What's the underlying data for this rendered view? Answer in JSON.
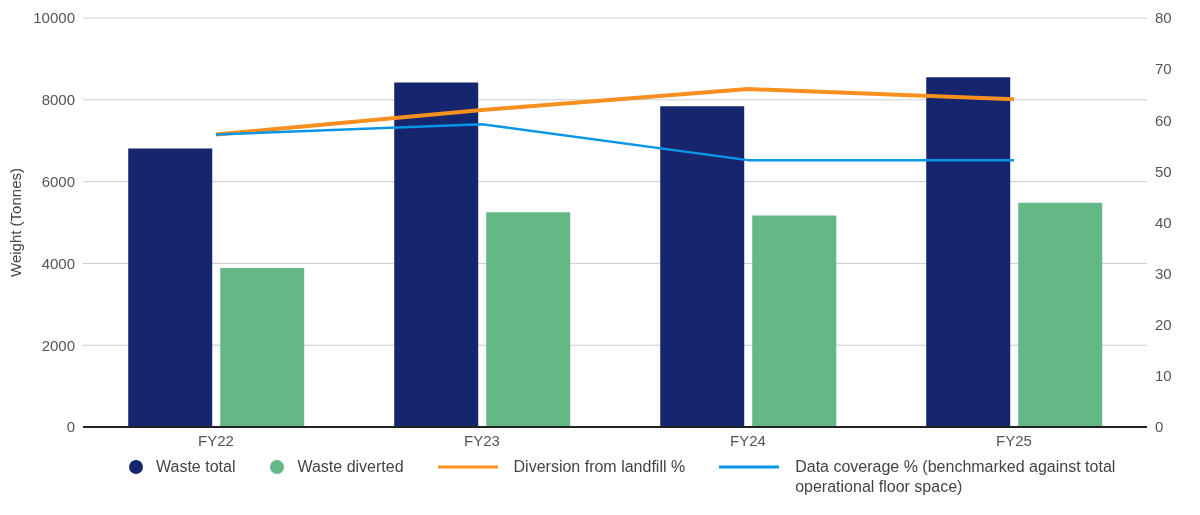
{
  "chart_data": {
    "type": "bar",
    "ylabel": "Weight (Tonnes)",
    "categories": [
      "FY22",
      "FY23",
      "FY24",
      "FY25"
    ],
    "series": [
      {
        "name": "Waste total",
        "color": "#15266f",
        "values": [
          6810,
          8420,
          7840,
          8550
        ]
      },
      {
        "name": "Waste diverted",
        "color": "#64b886",
        "values": [
          3890,
          5250,
          5170,
          5480
        ]
      },
      {
        "name": "Diversion from landfill %",
        "type": "line",
        "axis": "y2",
        "color": "#f7901e",
        "values": [
          57.2,
          62.0,
          66.1,
          64.1
        ]
      },
      {
        "name": "Data coverage % (benchmarked against total operational floor space)",
        "type": "line",
        "axis": "y2",
        "color": "#0a96e6",
        "values": [
          57.2,
          59.2,
          52.2,
          52.2
        ]
      }
    ],
    "ylim": [
      0,
      10000
    ],
    "yticks": [
      0,
      2000,
      4000,
      6000,
      8000,
      10000
    ],
    "y2lim": [
      0,
      80
    ],
    "y2ticks": [
      0,
      10,
      20,
      30,
      40,
      50,
      60,
      70,
      80
    ],
    "grid": "y",
    "legend": "bottom",
    "marker": "none",
    "line_style": "solid"
  }
}
